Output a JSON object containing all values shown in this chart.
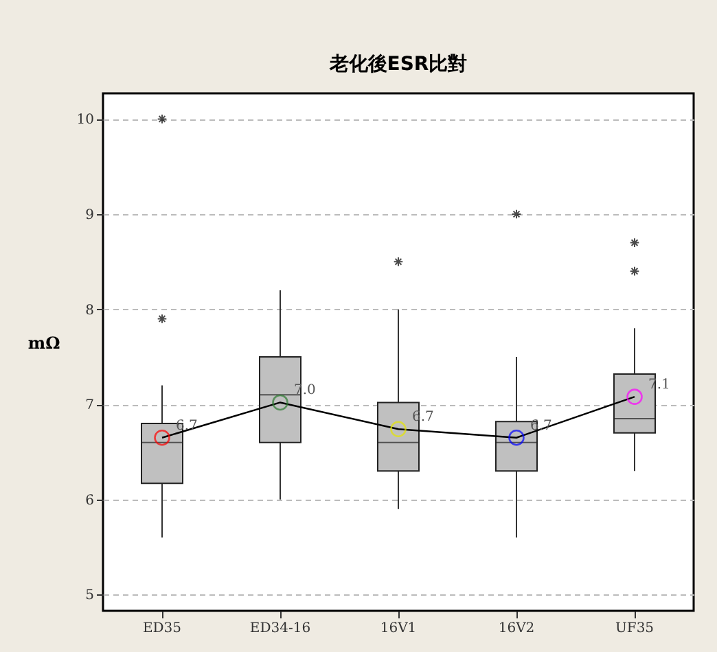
{
  "chart_data": {
    "type": "box",
    "title": "老化後ESR比對",
    "ylabel": "mΩ",
    "categories": [
      "ED35",
      "ED34-16",
      "16V1",
      "16V2",
      "UF35"
    ],
    "ylim": [
      4.83,
      10.27
    ],
    "yticks": [
      5,
      6,
      7,
      8,
      9,
      10
    ],
    "grid": "y",
    "series": [
      {
        "type": "box",
        "color": "#c0c0c0",
        "boxes": [
          {
            "low": 5.6,
            "q1": 6.17,
            "median": 6.6,
            "q3": 6.8,
            "high": 7.2,
            "outliers": [
              7.9,
              10.0
            ]
          },
          {
            "low": 6.0,
            "q1": 6.6,
            "median": 7.1,
            "q3": 7.5,
            "high": 8.2
          },
          {
            "low": 5.9,
            "q1": 6.3,
            "median": 6.6,
            "q3": 7.02,
            "high": 8.0,
            "outliers": [
              8.5
            ]
          },
          {
            "low": 5.6,
            "q1": 6.3,
            "median": 6.6,
            "q3": 6.82,
            "high": 7.5,
            "outliers": [
              9.0
            ]
          },
          {
            "low": 6.3,
            "q1": 6.7,
            "median": 6.85,
            "q3": 7.32,
            "high": 7.8,
            "outliers": [
              8.4,
              8.7
            ]
          }
        ]
      },
      {
        "type": "line",
        "color": "#000000",
        "marker": "circle",
        "colors": [
          "#ff0000",
          "#2e7d32",
          "#e6e600",
          "#0000ff",
          "#ff00ff"
        ],
        "values": [
          6.65,
          7.02,
          6.74,
          6.65,
          7.08
        ],
        "value_labels": [
          "6.7",
          "7.0",
          "6.7",
          "6.7",
          "7.1"
        ]
      }
    ]
  }
}
